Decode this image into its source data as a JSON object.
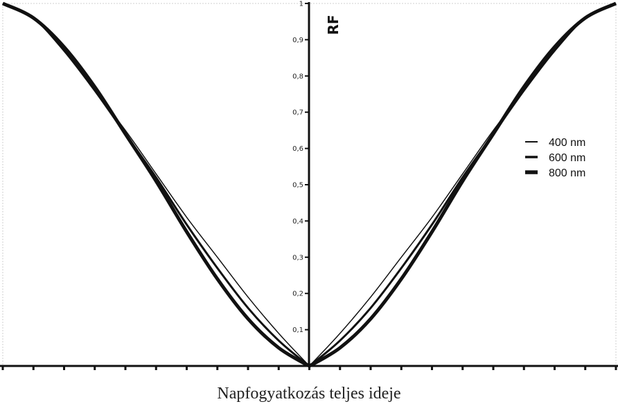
{
  "chart_data": {
    "type": "line",
    "title": "",
    "xlabel": "Napfogyatkozás teljes ideje",
    "ylabel": "RF",
    "ylim": [
      0,
      1
    ],
    "xlim": [
      -1,
      1
    ],
    "yticks": [
      "0,1",
      "0,2",
      "0,3",
      "0,4",
      "0,5",
      "0,6",
      "0,7",
      "0,8",
      "0,9",
      "1"
    ],
    "grid": false,
    "legend_position": "right",
    "series": [
      {
        "name": "400 nm",
        "color": "#111111",
        "x": [
          -1,
          -0.9,
          -0.8,
          -0.7,
          -0.6,
          -0.5,
          -0.4,
          -0.3,
          -0.2,
          -0.1,
          0,
          0.1,
          0.2,
          0.3,
          0.4,
          0.5,
          0.6,
          0.7,
          0.8,
          0.9,
          1
        ],
        "y": [
          1,
          0.96,
          0.87,
          0.76,
          0.65,
          0.53,
          0.41,
          0.3,
          0.19,
          0.09,
          0,
          0.09,
          0.19,
          0.3,
          0.41,
          0.53,
          0.65,
          0.76,
          0.87,
          0.96,
          1
        ]
      },
      {
        "name": "600 nm",
        "color": "#111111",
        "x": [
          -1,
          -0.9,
          -0.8,
          -0.7,
          -0.6,
          -0.5,
          -0.4,
          -0.3,
          -0.2,
          -0.1,
          0,
          0.1,
          0.2,
          0.3,
          0.4,
          0.5,
          0.6,
          0.7,
          0.8,
          0.9,
          1
        ],
        "y": [
          1,
          0.96,
          0.87,
          0.76,
          0.64,
          0.52,
          0.39,
          0.27,
          0.16,
          0.07,
          0,
          0.07,
          0.16,
          0.27,
          0.39,
          0.52,
          0.64,
          0.76,
          0.87,
          0.96,
          1
        ]
      },
      {
        "name": "800 nm",
        "color": "#111111",
        "x": [
          -1,
          -0.9,
          -0.8,
          -0.7,
          -0.6,
          -0.5,
          -0.4,
          -0.3,
          -0.2,
          -0.1,
          0,
          0.1,
          0.2,
          0.3,
          0.4,
          0.5,
          0.6,
          0.7,
          0.8,
          0.9,
          1
        ],
        "y": [
          1,
          0.96,
          0.88,
          0.77,
          0.64,
          0.51,
          0.37,
          0.24,
          0.13,
          0.05,
          0,
          0.05,
          0.13,
          0.24,
          0.37,
          0.51,
          0.64,
          0.77,
          0.88,
          0.96,
          1
        ]
      }
    ]
  }
}
